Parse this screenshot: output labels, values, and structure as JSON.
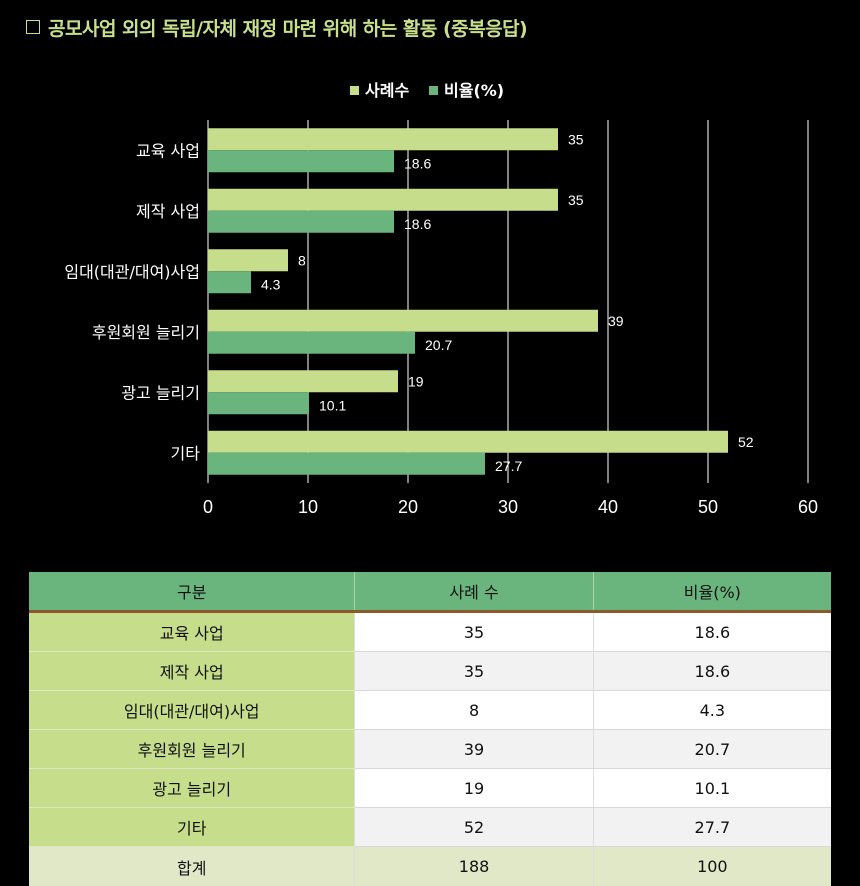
{
  "title": "공모사업 외의 독립/자체 재정 마련 위해 하는 활동 (중복응답)",
  "chart_data": {
    "type": "bar",
    "orientation": "horizontal",
    "categories": [
      "교육 사업",
      "제작 사업",
      "임대(대관/대여)사업",
      "후원회원 늘리기",
      "광고 늘리기",
      "기타"
    ],
    "series": [
      {
        "name": "사례수",
        "values": [
          35,
          35,
          8,
          39,
          19,
          52
        ],
        "labels": [
          "35",
          "35",
          "8",
          "39",
          "19",
          "52"
        ],
        "color": "#c6dd8c"
      },
      {
        "name": "비율(%)",
        "values": [
          18.6,
          18.6,
          4.3,
          20.7,
          10.1,
          27.7
        ],
        "labels": [
          "18.6",
          "18.6",
          "4.3",
          "20.7",
          "10.1",
          "27.7"
        ],
        "color": "#6ab57e"
      }
    ],
    "xlim": [
      0,
      60
    ],
    "x_ticks": [
      "0",
      "10",
      "20",
      "30",
      "40",
      "50",
      "60"
    ],
    "grid": true,
    "legend_position": "top"
  },
  "table": {
    "headers": [
      "구분",
      "사례 수",
      "비율(%)"
    ],
    "rows": [
      [
        "교육 사업",
        "35",
        "18.6"
      ],
      [
        "제작 사업",
        "35",
        "18.6"
      ],
      [
        "임대(대관/대여)사업",
        "8",
        "4.3"
      ],
      [
        "후원회원 늘리기",
        "39",
        "20.7"
      ],
      [
        "광고 늘리기",
        "19",
        "10.1"
      ],
      [
        "기타",
        "52",
        "27.7"
      ]
    ],
    "total": [
      "합계",
      "188",
      "100"
    ]
  }
}
